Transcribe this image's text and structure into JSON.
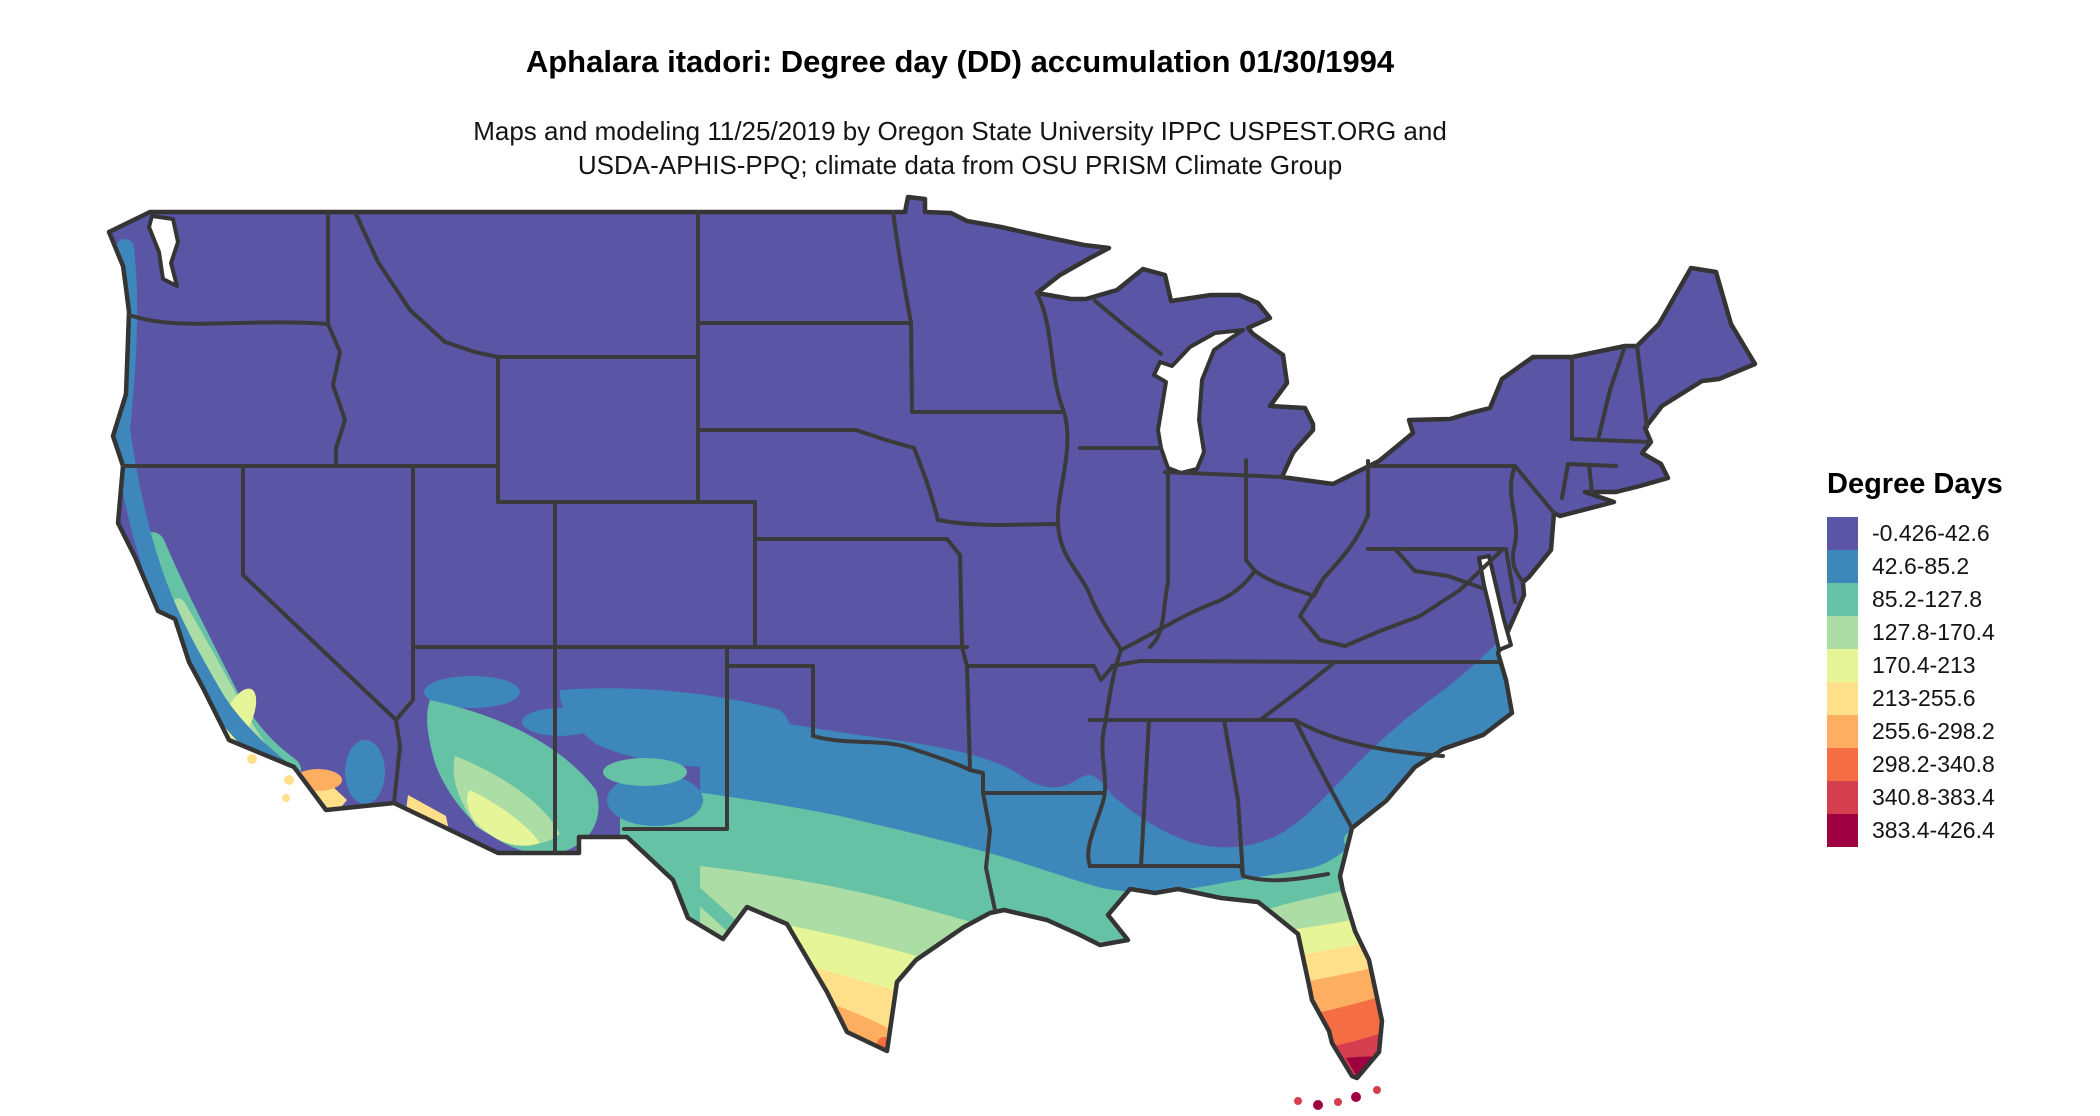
{
  "header": {
    "title": "Aphalara itadori: Degree day (DD) accumulation 01/30/1994",
    "subtitle_line1": "Maps and modeling 11/25/2019 by Oregon State University IPPC USPEST.ORG and",
    "subtitle_line2": "USDA-APHIS-PPQ; climate data from OSU PRISM Climate Group"
  },
  "legend": {
    "title": "Degree Days",
    "items": [
      {
        "label": "-0.426-42.6",
        "color": "#5a55a5"
      },
      {
        "label": "42.6-85.2",
        "color": "#3d87ba"
      },
      {
        "label": "85.2-127.8",
        "color": "#66c2a5"
      },
      {
        "label": "127.8-170.4",
        "color": "#abdda4"
      },
      {
        "label": "170.4-213",
        "color": "#e6f598"
      },
      {
        "label": "213-255.6",
        "color": "#fee08b"
      },
      {
        "label": "255.6-298.2",
        "color": "#fdae61"
      },
      {
        "label": "298.2-340.8",
        "color": "#f46d43"
      },
      {
        "label": "340.8-383.4",
        "color": "#d53e4f"
      },
      {
        "label": "383.4-426.4",
        "color": "#9e0142"
      }
    ]
  },
  "map": {
    "border_color": "#3a3a3a",
    "water_color": "#ffffff",
    "background": "#ffffff"
  },
  "chart_data": {
    "type": "heatmap",
    "subtype": "choropleth-degree-day-map",
    "region": "Contiguous United States with state boundaries",
    "title": "Aphalara itadori: Degree day (DD) accumulation 01/30/1994",
    "subtitle": "Maps and modeling 11/25/2019 by Oregon State University IPPC USPEST.ORG and USDA-APHIS-PPQ; climate data from OSU PRISM Climate Group",
    "legend_title": "Degree Days",
    "units": "degree days (DD)",
    "date_shown": "01/30/1994",
    "model_date": "11/25/2019",
    "classes": [
      {
        "range": "-0.426-42.6",
        "min": -0.426,
        "max": 42.6,
        "color": "#5a55a5"
      },
      {
        "range": "42.6-85.2",
        "min": 42.6,
        "max": 85.2,
        "color": "#3d87ba"
      },
      {
        "range": "85.2-127.8",
        "min": 85.2,
        "max": 127.8,
        "color": "#66c2a5"
      },
      {
        "range": "127.8-170.4",
        "min": 127.8,
        "max": 170.4,
        "color": "#abdda4"
      },
      {
        "range": "170.4-213",
        "min": 170.4,
        "max": 213,
        "color": "#e6f598"
      },
      {
        "range": "213-255.6",
        "min": 213,
        "max": 255.6,
        "color": "#fee08b"
      },
      {
        "range": "255.6-298.2",
        "min": 255.6,
        "max": 298.2,
        "color": "#fdae61"
      },
      {
        "range": "298.2-340.8",
        "min": 298.2,
        "max": 340.8,
        "color": "#f46d43"
      },
      {
        "range": "340.8-383.4",
        "min": 340.8,
        "max": 383.4,
        "color": "#d53e4f"
      },
      {
        "range": "383.4-426.4",
        "min": 383.4,
        "max": 426.4,
        "color": "#9e0142"
      }
    ],
    "spatial_pattern": [
      "Northern and central US (Pacific Northwest interior through Rockies, Plains, Midwest, Northeast) entirely in lowest class -0.426-42.6",
      "Narrow 42.6-85.2 band along the Pacific coast from Washington to southern California",
      "California coast ranges and Central Valley in 85.2-170.4 classes; southern California coastal basin reaches 213-298.2 with small orange hotspot",
      "Southern Arizona and New Mexico valleys in 85.2-255.6 classes",
      "South-increasing bands across Texas and the Gulf states: 42.6-85.2 then 85.2-127.8 then 127.8-213; south Texas tip reaches 255.6-298.2",
      "Atlantic coastal plain of the Carolinas and Georgia in 42.6-85.2 with 85.2-127.8 near the coast",
      "Florida shows the full gradient southward, with the southern tip and Keys reaching 340.8-426.4",
      "Great Lakes and ocean shown as white (no data)"
    ]
  }
}
